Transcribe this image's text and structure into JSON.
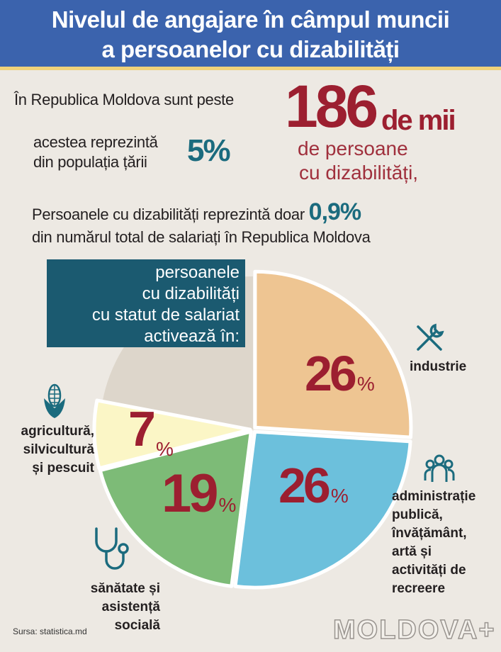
{
  "title": {
    "line1": "Nivelul de angajare în câmpul muncii",
    "line2": "a persoanelor cu dizabilități"
  },
  "intro": {
    "text": "În Republica Moldova sunt peste",
    "number": "186",
    "unit": "de mii",
    "subject_line1": "de persoane",
    "subject_line2": "cu dizabilități,"
  },
  "population": {
    "line1": "acestea reprezintă",
    "line2": "din populația țării",
    "value": "5%"
  },
  "employees": {
    "line1": "Persoanele cu dizabilități reprezintă doar",
    "value": "0,9%",
    "line2": "din numărul total de salariați în Republica Moldova"
  },
  "box": {
    "line1": "persoanele",
    "line2": "cu dizabilități",
    "line3": "cu statut de salariat",
    "line4": "activează în:"
  },
  "chart_data": {
    "type": "pie",
    "title": "persoanele cu dizabilități cu statut de salariat activează în:",
    "start": "top, clockwise",
    "slices": [
      {
        "label": "industrie",
        "value": 26,
        "value_text": "26",
        "color": "#eec592"
      },
      {
        "label": "administrație publică, învățământ, artă și activități de recreere",
        "value": 26,
        "value_text": "26",
        "color": "#6cc0dc"
      },
      {
        "label": "sănătate și asistență socială",
        "value": 19,
        "value_text": "19",
        "color": "#7dbb77"
      },
      {
        "label": "agricultură, silvicultură și pescuit",
        "value": 7,
        "value_text": "7",
        "color": "#fbf6c6"
      },
      {
        "label": "",
        "value": 22,
        "value_text": "",
        "color": "#ddd6cb"
      }
    ],
    "percent_sign": "%"
  },
  "labels": {
    "industry": [
      "industrie"
    ],
    "admin": [
      "administrație",
      "publică,",
      "învățământ,",
      "artă și",
      "activități de",
      "recreere"
    ],
    "health": [
      "sănătate și",
      "asistență",
      "socială"
    ],
    "agri": [
      "agricultură,",
      "silvicultură",
      "și pescuit"
    ]
  },
  "source": "Sursa: statistica.md",
  "logo": "MOLDOVA+"
}
